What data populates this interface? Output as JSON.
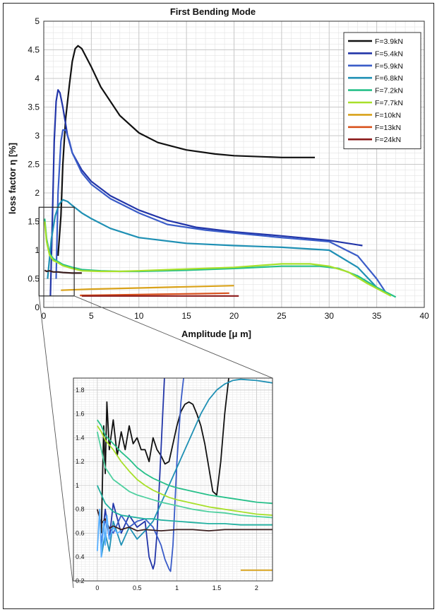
{
  "chart_data": [
    {
      "type": "line",
      "title": "First Bending Mode",
      "xlabel": "Amplitude [μ m]",
      "ylabel": "loss factor η [%]",
      "xlim": [
        0,
        40
      ],
      "ylim": [
        0,
        5
      ],
      "xticks": [
        "0",
        "5",
        "10",
        "15",
        "20",
        "25",
        "30",
        "35",
        "40"
      ],
      "yticks": [
        "0",
        "0.5",
        "1",
        "1.5",
        "2",
        "2.5",
        "3",
        "3.5",
        "4",
        "4.5",
        "5"
      ],
      "grid": true,
      "legend_position": "top-right",
      "series": [
        {
          "name": "F=3.9kN",
          "color": "#111111",
          "x": [
            1.5,
            1.8,
            2.0,
            2.3,
            2.7,
            3.0,
            3.3,
            3.6,
            4.0,
            5.0,
            6.0,
            8.0,
            10.0,
            12.0,
            15.0,
            18.0,
            20.0,
            25.0,
            28.5
          ],
          "y": [
            0.9,
            1.6,
            2.5,
            3.3,
            3.9,
            4.3,
            4.52,
            4.57,
            4.52,
            4.2,
            3.85,
            3.35,
            3.05,
            2.88,
            2.75,
            2.68,
            2.65,
            2.62,
            2.62
          ]
        },
        {
          "name": "F=5.4kN",
          "color": "#2235a8",
          "x": [
            0.7,
            0.9,
            1.1,
            1.3,
            1.5,
            1.7,
            2.0,
            2.5,
            3.0,
            4.0,
            5.0,
            7.0,
            10.0,
            13.0,
            16.0,
            20.0,
            25.0,
            30.0,
            33.5
          ],
          "y": [
            0.2,
            1.5,
            2.9,
            3.6,
            3.8,
            3.75,
            3.5,
            3.0,
            2.7,
            2.4,
            2.2,
            1.95,
            1.7,
            1.52,
            1.4,
            1.32,
            1.25,
            1.17,
            1.08
          ]
        },
        {
          "name": "F=5.9kN",
          "color": "#3a5cc8",
          "x": [
            1.3,
            1.5,
            1.8,
            2.0,
            2.3,
            2.7,
            3.0,
            4.0,
            5.0,
            7.0,
            10.0,
            13.0,
            17.0,
            20.0,
            25.0,
            30.0,
            33.0,
            35.0,
            36.0
          ],
          "y": [
            0.5,
            2.0,
            2.9,
            3.1,
            3.1,
            2.9,
            2.7,
            2.35,
            2.15,
            1.9,
            1.65,
            1.45,
            1.35,
            1.3,
            1.22,
            1.15,
            0.9,
            0.5,
            0.25
          ]
        },
        {
          "name": "F=6.8kN",
          "color": "#1f90b4",
          "x": [
            0.4,
            0.8,
            1.2,
            1.6,
            2.0,
            2.5,
            3.0,
            4.0,
            5.0,
            7.0,
            10.0,
            15.0,
            20.0,
            25.0,
            30.0,
            33.0,
            35.0,
            36.5
          ],
          "y": [
            0.5,
            1.2,
            1.6,
            1.8,
            1.88,
            1.85,
            1.78,
            1.65,
            1.55,
            1.38,
            1.22,
            1.12,
            1.08,
            1.05,
            1.0,
            0.7,
            0.35,
            0.2
          ]
        },
        {
          "name": "F=7.2kN",
          "color": "#27c08a",
          "x": [
            0.1,
            0.3,
            0.6,
            1.0,
            1.5,
            2.0,
            3.0,
            4.0,
            6.0,
            8.0,
            10.0,
            15.0,
            20.0,
            25.0,
            29.0,
            31.0,
            33.0,
            35.0,
            37.0
          ],
          "y": [
            1.55,
            1.2,
            0.95,
            0.85,
            0.8,
            0.75,
            0.7,
            0.66,
            0.64,
            0.63,
            0.63,
            0.65,
            0.68,
            0.72,
            0.72,
            0.68,
            0.55,
            0.35,
            0.18
          ]
        },
        {
          "name": "F=7.7kN",
          "color": "#a8e02a",
          "x": [
            0.1,
            0.3,
            0.6,
            1.0,
            1.5,
            2.0,
            3.0,
            4.0,
            6.0,
            8.0,
            10.0,
            15.0,
            20.0,
            25.0,
            28.0,
            30.0,
            32.0,
            34.0,
            36.5
          ],
          "y": [
            1.5,
            1.15,
            0.92,
            0.82,
            0.78,
            0.73,
            0.68,
            0.64,
            0.63,
            0.63,
            0.64,
            0.67,
            0.7,
            0.76,
            0.76,
            0.72,
            0.62,
            0.42,
            0.2
          ]
        },
        {
          "name": "F=10kN",
          "color": "#d9a21a",
          "x": [
            1.8,
            5.0,
            10.0,
            15.0,
            20.0
          ],
          "y": [
            0.3,
            0.32,
            0.34,
            0.36,
            0.38
          ]
        },
        {
          "name": "F=13kN",
          "color": "#d9531e",
          "x": [
            3.8,
            8.0,
            12.0,
            16.0,
            19.5
          ],
          "y": [
            0.21,
            0.22,
            0.23,
            0.24,
            0.25
          ]
        },
        {
          "name": "F=24kN",
          "color": "#8b1a1a",
          "x": [
            4.0,
            8.0,
            12.0,
            16.0,
            20.5
          ],
          "y": [
            0.2,
            0.2,
            0.2,
            0.2,
            0.2
          ]
        },
        {
          "name": "",
          "color": "#3b1f1f",
          "x": [
            0.1,
            0.3,
            0.6,
            1.0,
            1.5,
            2.0,
            3.0,
            4.0
          ],
          "y": [
            0.65,
            0.63,
            0.64,
            0.62,
            0.62,
            0.61,
            0.6,
            0.6
          ]
        }
      ]
    },
    {
      "type": "line",
      "title": "",
      "xlabel": "",
      "ylabel": "",
      "xlim": [
        -0.3,
        2.2
      ],
      "ylim": [
        0.2,
        1.9
      ],
      "xticks": [
        "0",
        "0.5",
        "1",
        "1.5",
        "2"
      ],
      "yticks": [
        "0.2",
        "0.4",
        "0.6",
        "0.8",
        "1",
        "1.2",
        "1.4",
        "1.6",
        "1.8"
      ],
      "grid": true,
      "series": [
        {
          "color": "#111111",
          "x": [
            0.05,
            0.08,
            0.1,
            0.12,
            0.15,
            0.2,
            0.25,
            0.3,
            0.35,
            0.4,
            0.45,
            0.5,
            0.55,
            0.6,
            0.65,
            0.7,
            0.75,
            0.8,
            0.85,
            0.9,
            0.95,
            1.0,
            1.05,
            1.1,
            1.15,
            1.2,
            1.25,
            1.3,
            1.35,
            1.4,
            1.45,
            1.5,
            1.55,
            1.6,
            1.65,
            1.7,
            1.75
          ],
          "y": [
            0.6,
            1.5,
            1.1,
            1.7,
            1.3,
            1.55,
            1.25,
            1.45,
            1.3,
            1.5,
            1.35,
            1.4,
            1.3,
            1.3,
            1.2,
            1.4,
            1.3,
            1.25,
            1.18,
            1.2,
            1.35,
            1.5,
            1.62,
            1.68,
            1.7,
            1.68,
            1.6,
            1.5,
            1.35,
            1.15,
            0.95,
            0.92,
            1.2,
            1.6,
            1.9,
            2.0,
            2.0
          ]
        },
        {
          "color": "#2235a8",
          "x": [
            0.05,
            0.1,
            0.15,
            0.2,
            0.3,
            0.4,
            0.5,
            0.6,
            0.65,
            0.7,
            0.72,
            0.75,
            0.8,
            0.85
          ],
          "y": [
            0.5,
            0.8,
            0.55,
            0.85,
            0.6,
            0.75,
            0.65,
            0.7,
            0.4,
            0.3,
            0.35,
            0.6,
            1.3,
            2.0
          ]
        },
        {
          "color": "#3a5cc8",
          "x": [
            0.05,
            0.1,
            0.2,
            0.3,
            0.4,
            0.5,
            0.6,
            0.7,
            0.8,
            0.85,
            0.9,
            0.92,
            0.95,
            1.0,
            1.05,
            1.1
          ],
          "y": [
            0.55,
            0.7,
            0.6,
            0.75,
            0.65,
            0.7,
            0.72,
            0.65,
            0.5,
            0.38,
            0.3,
            0.28,
            0.5,
            1.2,
            1.7,
            2.0
          ]
        },
        {
          "color": "#1f90b4",
          "x": [
            0.05,
            0.1,
            0.15,
            0.2,
            0.3,
            0.4,
            0.5,
            0.6,
            0.7,
            0.8,
            0.9,
            1.0,
            1.1,
            1.2,
            1.3,
            1.4,
            1.5,
            1.6,
            1.7,
            1.8,
            2.0,
            2.2
          ],
          "y": [
            0.4,
            0.6,
            0.45,
            0.7,
            0.5,
            0.65,
            0.55,
            0.62,
            0.7,
            0.85,
            1.0,
            1.15,
            1.3,
            1.45,
            1.6,
            1.72,
            1.8,
            1.85,
            1.88,
            1.89,
            1.88,
            1.86
          ]
        },
        {
          "color": "#27c08a",
          "x": [
            0.0,
            0.05,
            0.1,
            0.2,
            0.3,
            0.4,
            0.5,
            0.6,
            0.7,
            0.8,
            0.9,
            1.0,
            1.2,
            1.4,
            1.6,
            1.8,
            2.0,
            2.2
          ],
          "y": [
            1.55,
            1.5,
            1.42,
            1.35,
            1.28,
            1.22,
            1.15,
            1.1,
            1.06,
            1.03,
            1.0,
            0.98,
            0.95,
            0.92,
            0.9,
            0.88,
            0.86,
            0.85
          ]
        },
        {
          "color": "#a8e02a",
          "x": [
            0.0,
            0.05,
            0.1,
            0.2,
            0.3,
            0.4,
            0.5,
            0.6,
            0.7,
            0.8,
            0.9,
            1.0,
            1.2,
            1.4,
            1.6,
            1.8,
            2.0,
            2.2
          ],
          "y": [
            1.5,
            1.45,
            1.38,
            1.3,
            1.2,
            1.12,
            1.05,
            1.0,
            0.96,
            0.93,
            0.9,
            0.88,
            0.85,
            0.82,
            0.8,
            0.78,
            0.76,
            0.75
          ]
        },
        {
          "color": "#4fd0a0",
          "x": [
            0.0,
            0.05,
            0.1,
            0.2,
            0.3,
            0.4,
            0.5,
            0.6,
            0.7,
            0.8,
            1.0,
            1.2,
            1.4,
            1.6,
            1.8,
            2.0,
            2.2
          ],
          "y": [
            1.45,
            1.3,
            1.15,
            1.05,
            1.0,
            0.95,
            0.92,
            0.9,
            0.88,
            0.86,
            0.83,
            0.8,
            0.78,
            0.77,
            0.75,
            0.74,
            0.73
          ]
        },
        {
          "color": "#21b0a0",
          "x": [
            0.0,
            0.1,
            0.2,
            0.3,
            0.4,
            0.5,
            0.6,
            0.7,
            0.8,
            1.0,
            1.2,
            1.4,
            1.6,
            1.8,
            2.0,
            2.2
          ],
          "y": [
            1.0,
            0.85,
            0.78,
            0.75,
            0.74,
            0.73,
            0.72,
            0.72,
            0.71,
            0.7,
            0.69,
            0.68,
            0.68,
            0.67,
            0.67,
            0.67
          ]
        },
        {
          "color": "#3b1f1f",
          "x": [
            0.0,
            0.05,
            0.1,
            0.15,
            0.2,
            0.3,
            0.4,
            0.5,
            0.6,
            0.8,
            1.0,
            1.2,
            1.4,
            1.6,
            1.8,
            2.0,
            2.2
          ],
          "y": [
            0.8,
            0.68,
            0.72,
            0.64,
            0.66,
            0.63,
            0.65,
            0.62,
            0.63,
            0.62,
            0.63,
            0.63,
            0.62,
            0.63,
            0.63,
            0.63,
            0.63
          ]
        },
        {
          "color": "#d9a21a",
          "x": [
            1.8,
            2.2
          ],
          "y": [
            0.29,
            0.29
          ]
        },
        {
          "color": "#5ab0ff",
          "x": [
            0.0,
            0.03,
            0.05,
            0.08,
            0.1,
            0.12,
            0.15,
            0.2,
            0.25,
            0.3
          ],
          "y": [
            0.45,
            0.8,
            0.4,
            0.7,
            0.5,
            0.75,
            0.55,
            0.65,
            0.6,
            0.62
          ]
        }
      ]
    }
  ]
}
